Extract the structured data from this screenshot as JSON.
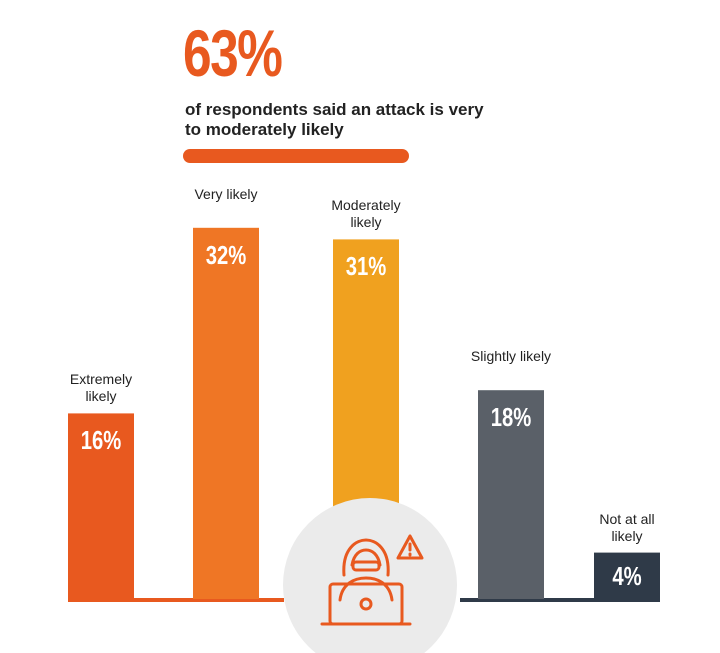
{
  "headline": {
    "value": "63%",
    "text": "of respondents said an attack is very to moderately likely",
    "color": "#e8591f"
  },
  "colors": {
    "baseline_left": "#e8591f",
    "baseline_right": "#2f3a48",
    "circle_bg": "#ebebeb",
    "icon": "#e8591f",
    "label_text": "#222222"
  },
  "icon": "hacker-at-laptop-with-warning-icon",
  "chart_data": {
    "type": "bar",
    "categories": [
      "Extremely likely",
      "Very likely",
      "Moderately likely",
      "Slightly likely",
      "Not at all likely"
    ],
    "values": [
      16,
      32,
      31,
      18,
      4
    ],
    "value_labels": [
      "16%",
      "32%",
      "31%",
      "18%",
      "4%"
    ],
    "colors": [
      "#e8591f",
      "#ef7625",
      "#f0a11f",
      "#5a6068",
      "#2f3a48"
    ],
    "unit": "%",
    "title": "",
    "xlabel": "",
    "ylabel": "",
    "grid": false,
    "legend": "none"
  }
}
